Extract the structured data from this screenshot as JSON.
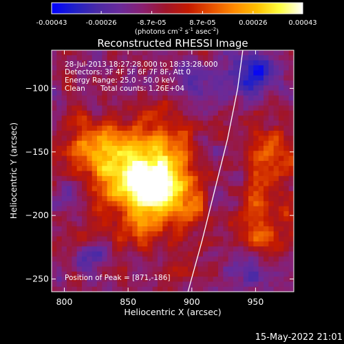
{
  "colors": {
    "background": "#000000",
    "foreground": "#ffffff",
    "colormap_stops": [
      "#0000ff",
      "#2020c8",
      "#4a2aa6",
      "#6a2a9a",
      "#8a1f70",
      "#a0152a",
      "#c41a00",
      "#e65000",
      "#ff8a00",
      "#ffc000",
      "#ffff40",
      "#ffffff"
    ]
  },
  "colorbar": {
    "tick_labels": [
      "-0.00043",
      "-0.00026",
      "-8.7e-05",
      "8.7e-05",
      "0.00026",
      "0.00043"
    ],
    "tick_values": [
      -0.00043,
      -0.00026,
      -8.7e-05,
      8.7e-05,
      0.00026,
      0.00043
    ],
    "units_prefix": "(photons cm",
    "units_exp1": "-2",
    "units_mid": " s",
    "units_exp2": "-1",
    "units_mid2": " asec",
    "units_exp3": "-2",
    "units_suffix": ")"
  },
  "chart_data": {
    "type": "heatmap",
    "title": "Reconstructed RHESSI Image",
    "xlabel": "Heliocentric X (arcsec)",
    "ylabel": "Heliocentric Y (arcsec)",
    "xlim": [
      790,
      980
    ],
    "ylim": [
      -260,
      -70
    ],
    "xticks": [
      800,
      850,
      900,
      950
    ],
    "yticks": [
      -100,
      -150,
      -200,
      -250
    ],
    "clim": [
      -0.00043,
      0.00043
    ],
    "peak": [
      871,
      -186
    ],
    "blobs": [
      {
        "x": 870,
        "y": -180,
        "sx": 18,
        "sy": 16,
        "amp": 0.00043
      },
      {
        "x": 850,
        "y": -165,
        "sx": 26,
        "sy": 24,
        "amp": 0.0003
      },
      {
        "x": 825,
        "y": -145,
        "sx": 18,
        "sy": 14,
        "amp": 0.00022
      },
      {
        "x": 880,
        "y": -150,
        "sx": 14,
        "sy": 18,
        "amp": 0.0002
      },
      {
        "x": 898,
        "y": -198,
        "sx": 10,
        "sy": 14,
        "amp": 0.00016
      },
      {
        "x": 860,
        "y": -215,
        "sx": 14,
        "sy": 10,
        "amp": 0.00014
      },
      {
        "x": 962,
        "y": -150,
        "sx": 14,
        "sy": 14,
        "amp": 0.00024
      },
      {
        "x": 958,
        "y": -212,
        "sx": 14,
        "sy": 16,
        "amp": 0.00022
      },
      {
        "x": 953,
        "y": -182,
        "sx": 10,
        "sy": 10,
        "amp": 0.00014
      },
      {
        "x": 938,
        "y": -248,
        "sx": 10,
        "sy": 8,
        "amp": 0.00012
      },
      {
        "x": 948,
        "y": -90,
        "sx": 14,
        "sy": 12,
        "amp": -0.00028
      },
      {
        "x": 942,
        "y": -245,
        "sx": 12,
        "sy": 10,
        "amp": -0.00026
      },
      {
        "x": 905,
        "y": -95,
        "sx": 10,
        "sy": 10,
        "amp": -0.00016
      },
      {
        "x": 820,
        "y": -235,
        "sx": 10,
        "sy": 8,
        "amp": -0.00014
      },
      {
        "x": 805,
        "y": -180,
        "sx": 8,
        "sy": 10,
        "amp": -0.00012
      }
    ],
    "background_level": -0.0001,
    "noise_amplitude": 9e-05,
    "limb_curve": [
      [
        940,
        -70
      ],
      [
        936,
        -100
      ],
      [
        928,
        -140
      ],
      [
        918,
        -180
      ],
      [
        908,
        -220
      ],
      [
        897,
        -260
      ]
    ]
  },
  "annotations": {
    "time_range": "28-Jul-2013 18:27:28.000 to 18:33:28.000",
    "detectors": "Detectors: 3F 4F 5F 6F 7F 8F, Att 0",
    "energy": "Energy Range: 25.0 - 50.0 keV",
    "clean": "Clean",
    "total_counts": "Total counts: 1.26E+04",
    "peak_text": "Position of Peak = [871,-186]"
  },
  "footer": {
    "timestamp": "15-May-2022 21:01"
  }
}
